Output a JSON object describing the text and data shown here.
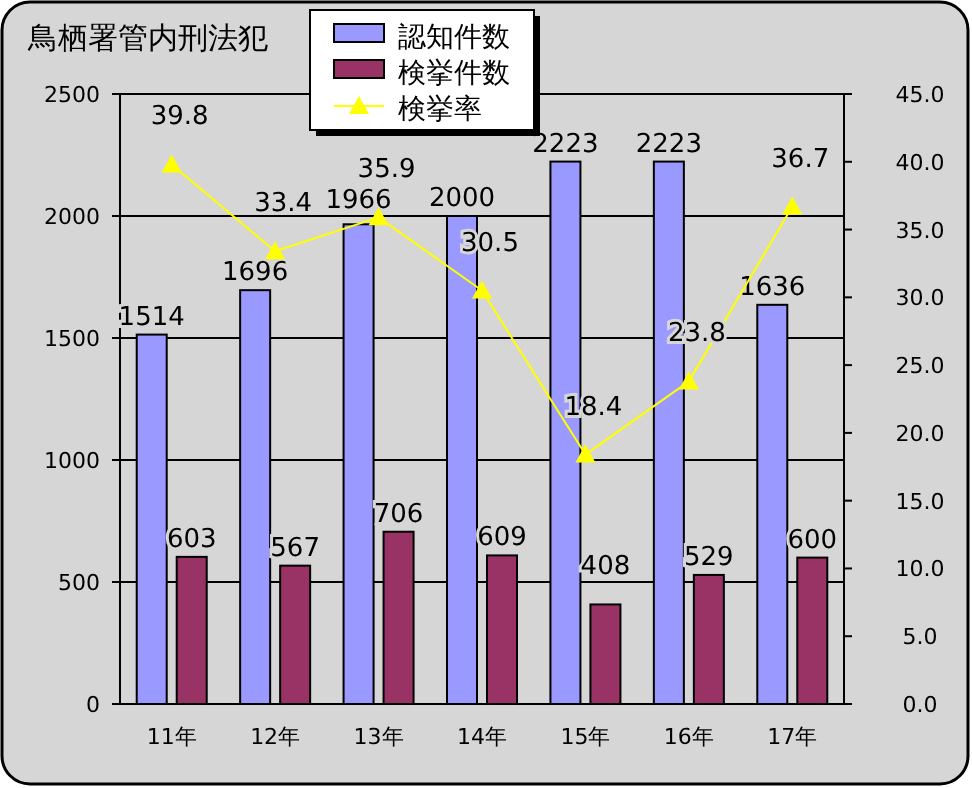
{
  "chart_data": {
    "type": "bar",
    "title": "鳥栖署管内刑法犯",
    "categories": [
      "11年",
      "12年",
      "13年",
      "14年",
      "15年",
      "16年",
      "17年"
    ],
    "series": [
      {
        "name": "認知件数",
        "color": "#9999ff",
        "values": [
          1514,
          1696,
          1966,
          2000,
          2223,
          2223,
          1636
        ]
      },
      {
        "name": "検挙件数",
        "color": "#993366",
        "values": [
          603,
          567,
          706,
          609,
          408,
          529,
          600
        ]
      },
      {
        "name": "検挙率",
        "type": "line",
        "axis": "y2",
        "color": "#ffff00",
        "marker": "triangle",
        "line_style": "solid",
        "values": [
          39.8,
          33.4,
          35.9,
          30.5,
          18.4,
          23.8,
          36.7
        ]
      }
    ],
    "ylim": [
      0,
      2500
    ],
    "yticks": [
      0,
      500,
      1000,
      1500,
      2000,
      2500
    ],
    "y2lim": [
      0,
      45
    ],
    "y2ticks": [
      {
        "value": 0,
        "label": "0.0"
      },
      {
        "value": 5,
        "label": "5.0"
      },
      {
        "value": 10,
        "label": "10.0"
      },
      {
        "value": 15,
        "label": "15.0"
      },
      {
        "value": 20,
        "label": "20.0"
      },
      {
        "value": 25,
        "label": "25.0"
      },
      {
        "value": 30,
        "label": "30.0"
      },
      {
        "value": 35,
        "label": "35.0"
      },
      {
        "value": 40,
        "label": "40.0"
      },
      {
        "value": 45,
        "label": "45.0"
      }
    ],
    "grid": "y",
    "legend": "top",
    "data_labels": true
  }
}
